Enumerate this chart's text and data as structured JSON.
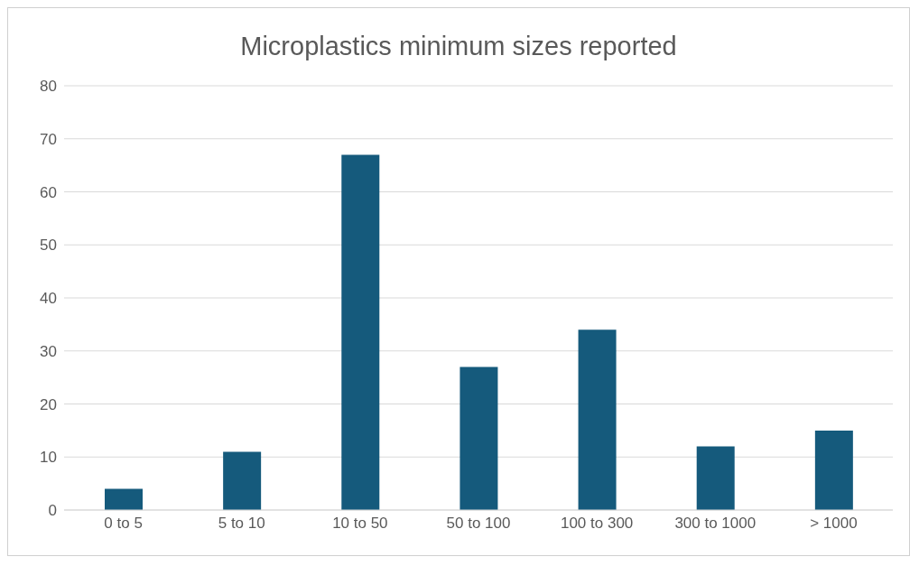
{
  "chart_data": {
    "type": "bar",
    "title": "Microplastics minimum sizes reported",
    "categories": [
      "0 to 5",
      "5 to 10",
      "10 to 50",
      "50 to 100",
      "100 to 300",
      "300 to 1000",
      "> 1000"
    ],
    "values": [
      4,
      11,
      67,
      27,
      34,
      12,
      15
    ],
    "color": "#155a7c",
    "ylim": [
      0,
      80
    ],
    "yticks": [
      0,
      10,
      20,
      30,
      40,
      50,
      60,
      70,
      80
    ],
    "grid": "y",
    "legend": false
  }
}
